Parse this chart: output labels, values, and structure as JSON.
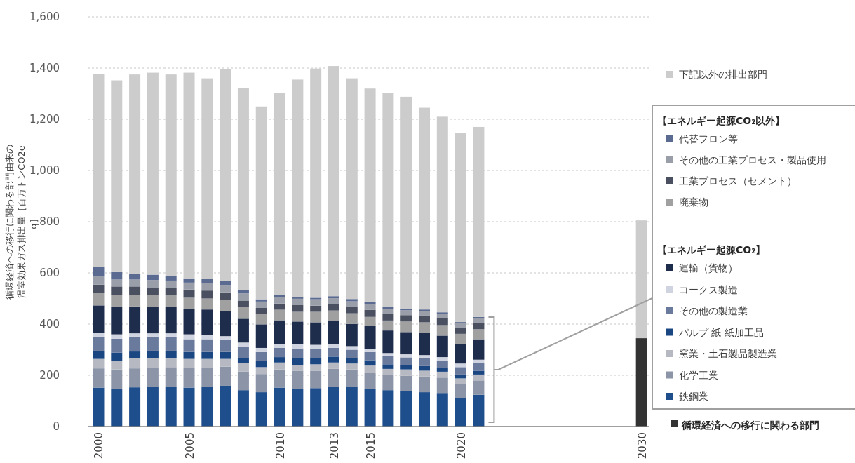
{
  "chart_data": {
    "type": "bar",
    "stacked": true,
    "ylabel": "循環経済への移行に関わる部門由来の温室効果ガス排出量［百万トンCO2eq］",
    "x": [
      2000,
      2001,
      2002,
      2003,
      2004,
      2005,
      2006,
      2007,
      2008,
      2009,
      2010,
      2011,
      2012,
      2013,
      2014,
      2015,
      2016,
      2017,
      2018,
      2019,
      2020,
      2021,
      2030
    ],
    "xlim": [
      1999.4,
      2030.4
    ],
    "xticks": [
      2000,
      2005,
      2010,
      2013,
      2015,
      2020,
      2030
    ],
    "ylim": [
      0,
      1600
    ],
    "yticks": [
      0,
      200,
      400,
      600,
      800,
      {
        "value": 1000,
        "label": "1,000"
      },
      {
        "value": 1200,
        "label": "1,200"
      },
      {
        "value": 1400,
        "label": "1,400"
      },
      {
        "value": 1600,
        "label": "1,600"
      }
    ],
    "grid": "y",
    "legend": "right",
    "annotations": [
      "【エネルギー起源CO₂以外】",
      "【エネルギー起源CO₂】"
    ],
    "series": [
      {
        "name": "鉄鋼業",
        "color": "#1f4e8c",
        "values": [
          152,
          148,
          153,
          155,
          155,
          152,
          154,
          159,
          142,
          134,
          152,
          147,
          150,
          156,
          154,
          148,
          142,
          138,
          134,
          131,
          110,
          124,
          null
        ]
      },
      {
        "name": "化学工業",
        "color": "#8c95a8",
        "values": [
          75,
          75,
          74,
          75,
          77,
          78,
          76,
          75,
          73,
          71,
          71,
          71,
          68,
          69,
          69,
          63,
          58,
          60,
          61,
          60,
          55,
          56,
          null
        ]
      },
      {
        "name": "窯業・土石製品製造業",
        "color": "#b6b9c1",
        "values": [
          37,
          34,
          40,
          37,
          35,
          34,
          34,
          30,
          32,
          27,
          27,
          23,
          25,
          25,
          23,
          27,
          25,
          25,
          23,
          23,
          23,
          23,
          null
        ]
      },
      {
        "name": "パルプ 紙 紙加工品",
        "color": "#1a4682",
        "values": [
          32,
          32,
          26,
          29,
          29,
          27,
          27,
          27,
          21,
          23,
          21,
          26,
          24,
          23,
          22,
          21,
          18,
          18,
          18,
          16,
          15,
          15,
          null
        ]
      },
      {
        "name": "その他の製造業",
        "color": "#6a7a9c",
        "values": [
          55,
          54,
          58,
          55,
          55,
          50,
          50,
          46,
          42,
          36,
          36,
          38,
          36,
          34,
          32,
          32,
          32,
          29,
          31,
          27,
          29,
          29,
          null
        ]
      },
      {
        "name": "コークス製造",
        "color": "#d0d4e0",
        "values": [
          15,
          17,
          13,
          13,
          13,
          19,
          17,
          16,
          18,
          16,
          16,
          16,
          16,
          16,
          14,
          12,
          12,
          12,
          12,
          14,
          14,
          14,
          null
        ]
      },
      {
        "name": "運輸（貨物）",
        "color": "#1f2d4d",
        "values": [
          107,
          107,
          105,
          103,
          103,
          98,
          99,
          98,
          93,
          92,
          92,
          89,
          88,
          90,
          87,
          89,
          88,
          87,
          87,
          84,
          77,
          80,
          null
        ]
      },
      {
        "name": "廃棄物",
        "color": "#a0a0a0",
        "values": [
          48,
          47,
          44,
          46,
          45,
          45,
          43,
          44,
          45,
          40,
          41,
          38,
          41,
          40,
          41,
          36,
          39,
          41,
          41,
          41,
          39,
          39,
          null
        ]
      },
      {
        "name": "工業プロセス（セメント）",
        "color": "#4a5060",
        "values": [
          33,
          33,
          34,
          28,
          29,
          32,
          31,
          29,
          26,
          24,
          24,
          26,
          24,
          25,
          25,
          28,
          26,
          25,
          26,
          26,
          23,
          25,
          null
        ]
      },
      {
        "name": "その他の工業プロセス・製品使用",
        "color": "#9a9ea8",
        "values": [
          34,
          27,
          27,
          31,
          29,
          27,
          28,
          29,
          28,
          25,
          26,
          25,
          25,
          23,
          22,
          22,
          20,
          19,
          18,
          18,
          18,
          17,
          null
        ]
      },
      {
        "name": "代替フロン等",
        "color": "#5a6a90",
        "values": [
          35,
          29,
          23,
          21,
          18,
          17,
          18,
          15,
          13,
          9,
          9,
          7,
          6,
          8,
          9,
          7,
          7,
          6,
          6,
          6,
          5,
          6,
          null
        ]
      },
      {
        "name": "循環経済への移行に関わる部門",
        "color": "#333333",
        "values": [
          null,
          null,
          null,
          null,
          null,
          null,
          null,
          null,
          null,
          null,
          null,
          null,
          null,
          null,
          null,
          null,
          null,
          null,
          null,
          null,
          null,
          null,
          345
        ]
      },
      {
        "name": "下記以外の排出部門",
        "color": "#cccccc",
        "values": [
          755,
          749,
          778,
          789,
          787,
          803,
          783,
          827,
          789,
          753,
          787,
          849,
          895,
          899,
          862,
          835,
          835,
          828,
          788,
          764,
          739,
          742,
          460
        ]
      }
    ]
  }
}
